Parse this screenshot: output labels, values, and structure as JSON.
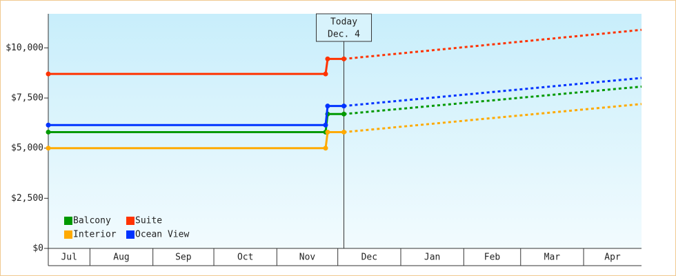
{
  "chart_data": {
    "type": "line",
    "xlim": [
      10.5,
      302.5
    ],
    "xticks": [
      31,
      62,
      92,
      123,
      153,
      184,
      215,
      243,
      274
    ],
    "categories": [
      "Jul",
      "Aug",
      "Sep",
      "Oct",
      "Nov",
      "Dec",
      "Jan",
      "Feb",
      "Mar",
      "Apr"
    ],
    "ylim": [
      0,
      11700
    ],
    "yticks": [
      {
        "value": 0,
        "label": "$0"
      },
      {
        "value": 2500,
        "label": "$2,500"
      },
      {
        "value": 5000,
        "label": "$5,000"
      },
      {
        "value": 7500,
        "label": "$7,500"
      },
      {
        "value": 10000,
        "label": "$10,000"
      }
    ],
    "x": [
      10.5,
      147,
      148,
      156,
      302.5
    ],
    "series": [
      {
        "name": "Balcony",
        "color": "#009900",
        "values": [
          5800,
          5800,
          6700,
          6700,
          null
        ],
        "forecast_values": [
          null,
          null,
          null,
          6700,
          8070
        ]
      },
      {
        "name": "Suite",
        "color": "#ff3300",
        "values": [
          8700,
          8700,
          9450,
          9450,
          null
        ],
        "forecast_values": [
          null,
          null,
          null,
          9450,
          10900
        ]
      },
      {
        "name": "Interior",
        "color": "#ffaa00",
        "values": [
          5000,
          5000,
          5800,
          5800,
          null
        ],
        "forecast_values": [
          null,
          null,
          null,
          5800,
          7200
        ]
      },
      {
        "name": "Ocean View",
        "color": "#0033ff",
        "values": [
          6150,
          6150,
          7100,
          7100,
          null
        ],
        "forecast_values": [
          null,
          null,
          null,
          7100,
          8500
        ]
      }
    ],
    "annotation": {
      "x": 156,
      "lines": [
        "Today",
        "Dec. 4"
      ]
    },
    "legend": "lower-left"
  }
}
